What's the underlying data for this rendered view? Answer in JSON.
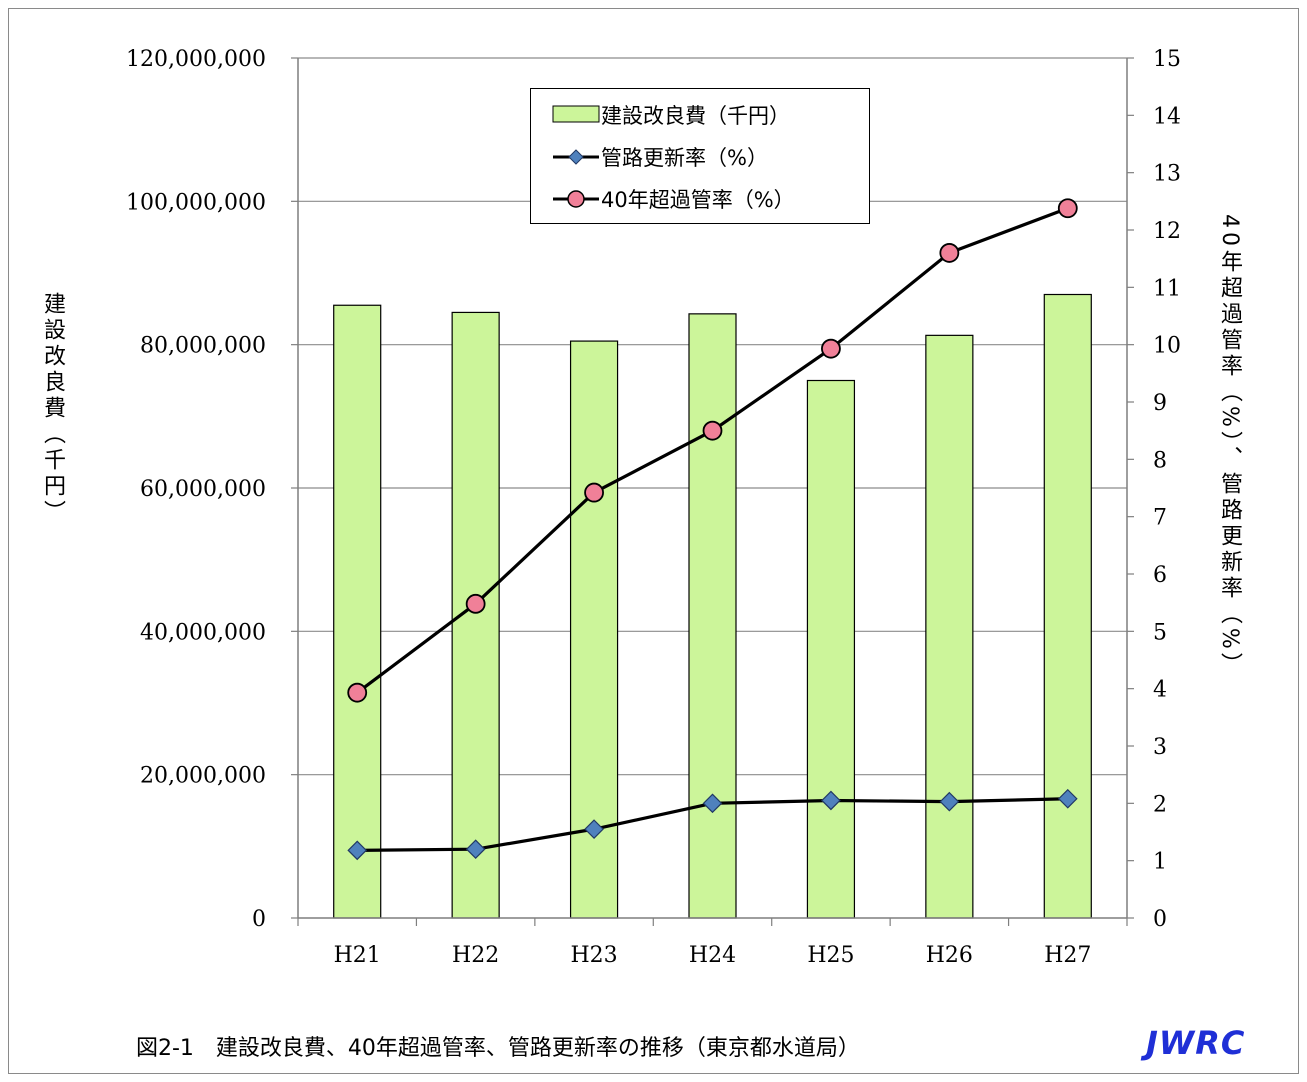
{
  "chart_data": {
    "type": "bar+line",
    "categories": [
      "H21",
      "H22",
      "H23",
      "H24",
      "H25",
      "H26",
      "H27"
    ],
    "bar_series": {
      "name": "建設改良費（千円）",
      "axis": "left",
      "color": "#ccf59a",
      "values": [
        85500000,
        84500000,
        80500000,
        84300000,
        75000000,
        81300000,
        87000000
      ]
    },
    "line_series": [
      {
        "name": "管路更新率（%）",
        "axis": "right",
        "marker": "diamond",
        "marker_color": "#4f81bd",
        "values": [
          1.18,
          1.2,
          1.55,
          2.0,
          2.05,
          2.03,
          2.08
        ]
      },
      {
        "name": "40年超過管率（%）",
        "axis": "right",
        "marker": "circle",
        "marker_color": "#f08098",
        "values": [
          3.93,
          5.48,
          7.42,
          8.5,
          9.93,
          11.6,
          12.38
        ]
      }
    ],
    "y_left": {
      "label": "建設改良費（千円）",
      "range": [
        0,
        120000000
      ],
      "ticks": [
        "0",
        "20,000,000",
        "40,000,000",
        "60,000,000",
        "80,000,000",
        "100,000,000",
        "120,000,000"
      ]
    },
    "y_right": {
      "label": "40年超過管率（%）、管路更新率（%）",
      "range": [
        0,
        15
      ],
      "ticks": [
        "0",
        "1",
        "2",
        "3",
        "4",
        "5",
        "6",
        "7",
        "8",
        "9",
        "10",
        "11",
        "12",
        "13",
        "14",
        "15"
      ]
    },
    "grid": true,
    "legend_position": "top-center"
  },
  "caption": "図2-1　建設改良費、40年超過管率、管路更新率の推移（東京都水道局）",
  "logo": "JWRC"
}
